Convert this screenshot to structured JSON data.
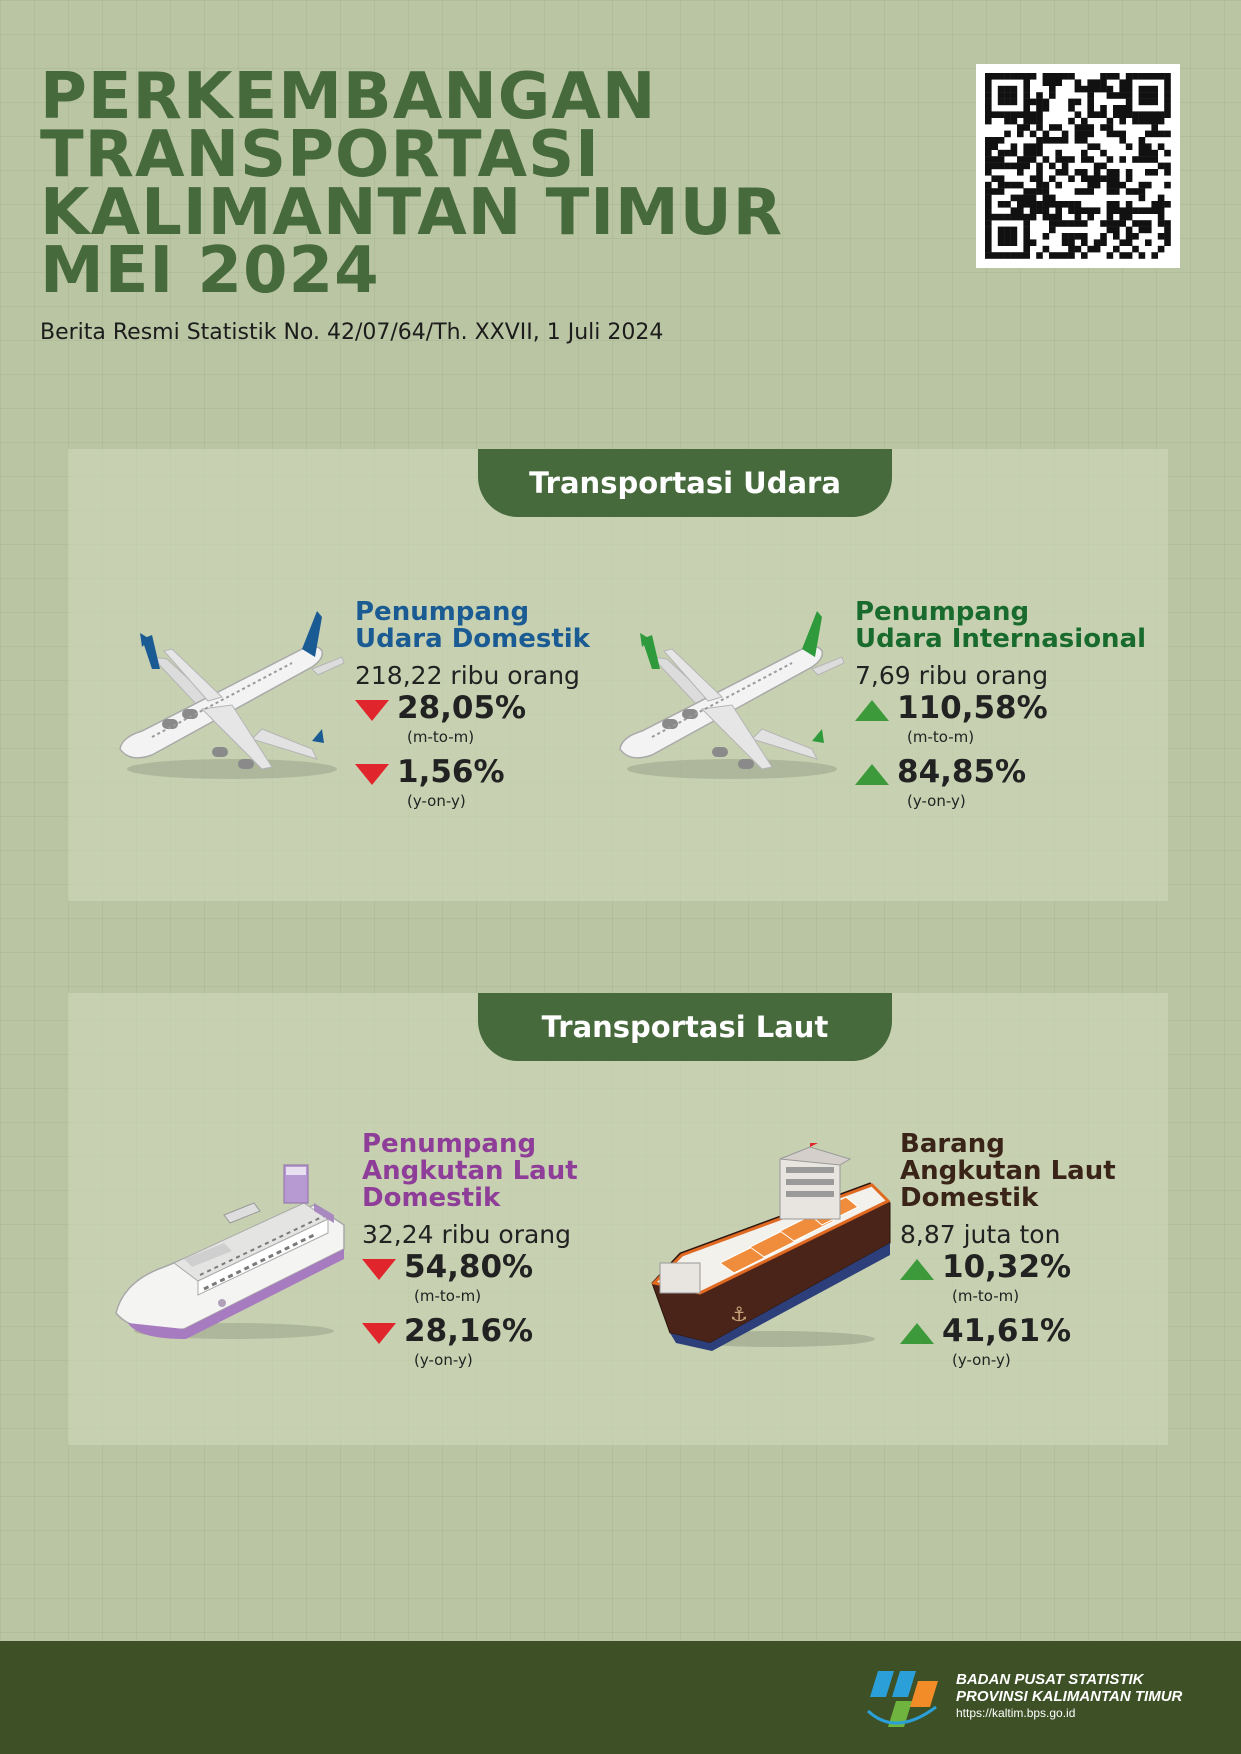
{
  "header": {
    "title_lines": [
      "PERKEMBANGAN",
      "TRANSPORTASI",
      "KALIMANTAN TIMUR",
      "MEI 2024"
    ],
    "subtitle": "Berita Resmi Statistik No. 42/07/64/Th. XXVII, 1 Juli 2024",
    "qr_icon": "qr-code-icon"
  },
  "colors": {
    "title": "#476a3d",
    "air_domestic": "#1a5b93",
    "air_international": "#186b2c",
    "sea_passenger": "#8e3e98",
    "sea_cargo": "#3a2418",
    "down": "#e0262c",
    "up": "#3d9a3a"
  },
  "air": {
    "tab_label": "Transportasi Udara",
    "domestic": {
      "title_lines": [
        "Penumpang",
        "Udara Domestik"
      ],
      "amount": "218,22 ribu orang",
      "mtm": {
        "value": "28,05%",
        "period": "(m-to-m)",
        "direction": "down"
      },
      "yoy": {
        "value": "1,56%",
        "period": "(y-on-y)",
        "direction": "down"
      },
      "icon": "airplane-icon"
    },
    "international": {
      "title_lines": [
        "Penumpang",
        "Udara Internasional"
      ],
      "amount": "7,69 ribu orang",
      "mtm": {
        "value": "110,58%",
        "period": "(m-to-m)",
        "direction": "up"
      },
      "yoy": {
        "value": "84,85%",
        "period": "(y-on-y)",
        "direction": "up"
      },
      "icon": "airplane-icon"
    }
  },
  "sea": {
    "tab_label": "Transportasi Laut",
    "passenger": {
      "title_lines": [
        "Penumpang",
        "Angkutan Laut",
        "Domestik"
      ],
      "amount": "32,24 ribu orang",
      "mtm": {
        "value": "54,80%",
        "period": "(m-to-m)",
        "direction": "down"
      },
      "yoy": {
        "value": "28,16%",
        "period": "(y-on-y)",
        "direction": "down"
      },
      "icon": "passenger-ship-icon"
    },
    "cargo": {
      "title_lines": [
        "Barang",
        "Angkutan Laut",
        "Domestik"
      ],
      "amount": "8,87 juta ton",
      "mtm": {
        "value": "10,32%",
        "period": "(m-to-m)",
        "direction": "up"
      },
      "yoy": {
        "value": "41,61%",
        "period": "(y-on-y)",
        "direction": "up"
      },
      "icon": "cargo-ship-icon"
    }
  },
  "footer": {
    "org_line1": "BADAN PUSAT STATISTIK",
    "org_line2": "PROVINSI KALIMANTAN TIMUR",
    "url": "https://kaltim.bps.go.id",
    "logo_icon": "bps-logo-icon"
  }
}
